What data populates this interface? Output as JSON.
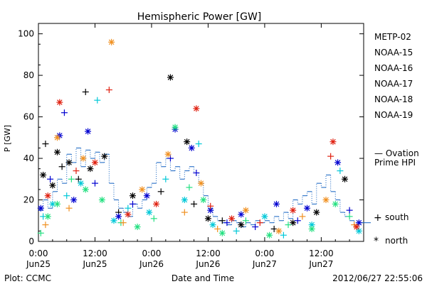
{
  "chart_data": {
    "type": "scatter",
    "title": "Hemispheric Power [GW]",
    "ylabel": "P [GW]",
    "xlabel": "Date and Time",
    "ylim": [
      0,
      105
    ],
    "xlim": [
      "2012-06-25T00:00",
      "2012-06-27T21:00"
    ],
    "y_ticks": [
      0,
      20,
      40,
      60,
      80,
      100
    ],
    "x_ticks": [
      {
        "time": "2012-06-25T00:00",
        "line1": "0:00",
        "line2": "Jun25"
      },
      {
        "time": "2012-06-25T12:00",
        "line1": "12:00",
        "line2": "Jun25"
      },
      {
        "time": "2012-06-26T00:00",
        "line1": "0:00",
        "line2": "Jun26"
      },
      {
        "time": "2012-06-26T12:00",
        "line1": "12:00",
        "line2": "Jun26"
      },
      {
        "time": "2012-06-27T00:00",
        "line1": "0:00",
        "line2": "Jun27"
      },
      {
        "time": "2012-06-27T12:00",
        "line1": "12:00",
        "line2": "Jun27"
      }
    ],
    "legend_position": "right",
    "marker_legend": {
      "south": "south",
      "north": "north",
      "south_symbol": "+",
      "north_symbol": "*"
    },
    "series": [
      {
        "name": "METP-02",
        "color": "#000000",
        "points": [
          {
            "t": "2012-06-25T01:00",
            "v": 32,
            "h": "north"
          },
          {
            "t": "2012-06-25T01:30",
            "v": 47,
            "h": "south"
          },
          {
            "t": "2012-06-25T03:00",
            "v": 27,
            "h": "north"
          },
          {
            "t": "2012-06-25T04:00",
            "v": 43,
            "h": "north"
          },
          {
            "t": "2012-06-25T05:00",
            "v": 36,
            "h": "south"
          },
          {
            "t": "2012-06-25T06:30",
            "v": 38,
            "h": "north"
          },
          {
            "t": "2012-06-25T08:30",
            "v": 30,
            "h": "south"
          },
          {
            "t": "2012-06-25T10:00",
            "v": 72,
            "h": "south"
          },
          {
            "t": "2012-06-25T11:00",
            "v": 35,
            "h": "north"
          },
          {
            "t": "2012-06-25T14:00",
            "v": 41,
            "h": "north"
          },
          {
            "t": "2012-06-25T17:00",
            "v": 14,
            "h": "south"
          },
          {
            "t": "2012-06-25T20:00",
            "v": 22,
            "h": "north"
          },
          {
            "t": "2012-06-26T02:00",
            "v": 24,
            "h": "south"
          },
          {
            "t": "2012-06-26T04:00",
            "v": 79,
            "h": "north"
          },
          {
            "t": "2012-06-26T07:30",
            "v": 48,
            "h": "north"
          },
          {
            "t": "2012-06-26T09:00",
            "v": 18,
            "h": "south"
          },
          {
            "t": "2012-06-26T12:00",
            "v": 11,
            "h": "north"
          },
          {
            "t": "2012-06-26T15:00",
            "v": 10,
            "h": "south"
          },
          {
            "t": "2012-06-26T19:00",
            "v": 8,
            "h": "north"
          },
          {
            "t": "2012-06-27T02:00",
            "v": 6,
            "h": "south"
          },
          {
            "t": "2012-06-27T06:00",
            "v": 9,
            "h": "north"
          },
          {
            "t": "2012-06-27T11:00",
            "v": 14,
            "h": "north"
          },
          {
            "t": "2012-06-27T17:00",
            "v": 30,
            "h": "north"
          }
        ]
      },
      {
        "name": "NOAA-15",
        "color": "#0000d0",
        "points": [
          {
            "t": "2012-06-25T00:30",
            "v": 16,
            "h": "north"
          },
          {
            "t": "2012-06-25T02:30",
            "v": 30,
            "h": "south"
          },
          {
            "t": "2012-06-25T04:30",
            "v": 51,
            "h": "north"
          },
          {
            "t": "2012-06-25T05:30",
            "v": 62,
            "h": "south"
          },
          {
            "t": "2012-06-25T07:30",
            "v": 20,
            "h": "north"
          },
          {
            "t": "2012-06-25T10:30",
            "v": 53,
            "h": "north"
          },
          {
            "t": "2012-06-25T12:00",
            "v": 28,
            "h": "south"
          },
          {
            "t": "2012-06-25T17:00",
            "v": 12,
            "h": "north"
          },
          {
            "t": "2012-06-25T20:00",
            "v": 18,
            "h": "south"
          },
          {
            "t": "2012-06-25T23:00",
            "v": 22,
            "h": "north"
          },
          {
            "t": "2012-06-26T04:00",
            "v": 40,
            "h": "south"
          },
          {
            "t": "2012-06-26T05:00",
            "v": 54,
            "h": "north"
          },
          {
            "t": "2012-06-26T08:30",
            "v": 45,
            "h": "north"
          },
          {
            "t": "2012-06-26T09:30",
            "v": 33,
            "h": "south"
          },
          {
            "t": "2012-06-26T12:30",
            "v": 15,
            "h": "north"
          },
          {
            "t": "2012-06-26T16:00",
            "v": 9,
            "h": "south"
          },
          {
            "t": "2012-06-26T19:00",
            "v": 13,
            "h": "north"
          },
          {
            "t": "2012-06-26T22:00",
            "v": 7,
            "h": "south"
          },
          {
            "t": "2012-06-27T02:30",
            "v": 18,
            "h": "north"
          },
          {
            "t": "2012-06-27T07:00",
            "v": 10,
            "h": "south"
          },
          {
            "t": "2012-06-27T09:00",
            "v": 16,
            "h": "north"
          },
          {
            "t": "2012-06-27T15:30",
            "v": 38,
            "h": "north"
          },
          {
            "t": "2012-06-27T18:00",
            "v": 15,
            "h": "south"
          },
          {
            "t": "2012-06-27T20:00",
            "v": 9,
            "h": "north"
          }
        ]
      },
      {
        "name": "NOAA-16",
        "color": "#00c8d8",
        "points": [
          {
            "t": "2012-06-25T01:00",
            "v": 12,
            "h": "south"
          },
          {
            "t": "2012-06-25T03:00",
            "v": 18,
            "h": "north"
          },
          {
            "t": "2012-06-25T06:00",
            "v": 22,
            "h": "south"
          },
          {
            "t": "2012-06-25T09:00",
            "v": 28,
            "h": "north"
          },
          {
            "t": "2012-06-25T12:30",
            "v": 68,
            "h": "south"
          },
          {
            "t": "2012-06-25T16:00",
            "v": 10,
            "h": "north"
          },
          {
            "t": "2012-06-25T19:00",
            "v": 16,
            "h": "south"
          },
          {
            "t": "2012-06-25T23:30",
            "v": 14,
            "h": "north"
          },
          {
            "t": "2012-06-26T03:00",
            "v": 30,
            "h": "south"
          },
          {
            "t": "2012-06-26T07:00",
            "v": 20,
            "h": "north"
          },
          {
            "t": "2012-06-26T10:00",
            "v": 47,
            "h": "south"
          },
          {
            "t": "2012-06-26T13:00",
            "v": 8,
            "h": "north"
          },
          {
            "t": "2012-06-26T18:00",
            "v": 5,
            "h": "south"
          },
          {
            "t": "2012-06-27T00:00",
            "v": 12,
            "h": "north"
          },
          {
            "t": "2012-06-27T04:00",
            "v": 3,
            "h": "south"
          },
          {
            "t": "2012-06-27T10:00",
            "v": 8,
            "h": "north"
          },
          {
            "t": "2012-06-27T16:00",
            "v": 34,
            "h": "south"
          },
          {
            "t": "2012-06-27T20:00",
            "v": 5,
            "h": "north"
          }
        ]
      },
      {
        "name": "NOAA-17",
        "color": "#22e080",
        "points": [
          {
            "t": "2012-06-25T00:30",
            "v": 4,
            "h": "south"
          },
          {
            "t": "2012-06-25T02:00",
            "v": 12,
            "h": "north"
          },
          {
            "t": "2012-06-25T04:00",
            "v": 18,
            "h": "north"
          },
          {
            "t": "2012-06-25T07:00",
            "v": 30,
            "h": "south"
          },
          {
            "t": "2012-06-25T10:00",
            "v": 25,
            "h": "north"
          },
          {
            "t": "2012-06-25T13:30",
            "v": 20,
            "h": "north"
          },
          {
            "t": "2012-06-25T17:30",
            "v": 9,
            "h": "south"
          },
          {
            "t": "2012-06-25T21:00",
            "v": 7,
            "h": "north"
          },
          {
            "t": "2012-06-26T00:30",
            "v": 11,
            "h": "south"
          },
          {
            "t": "2012-06-26T05:00",
            "v": 55,
            "h": "north"
          },
          {
            "t": "2012-06-26T08:00",
            "v": 26,
            "h": "south"
          },
          {
            "t": "2012-06-26T11:00",
            "v": 20,
            "h": "north"
          },
          {
            "t": "2012-06-26T15:00",
            "v": 4,
            "h": "north"
          },
          {
            "t": "2012-06-26T20:00",
            "v": 10,
            "h": "south"
          },
          {
            "t": "2012-06-27T01:00",
            "v": 3,
            "h": "north"
          },
          {
            "t": "2012-06-27T05:00",
            "v": 8,
            "h": "south"
          },
          {
            "t": "2012-06-27T10:00",
            "v": 6,
            "h": "north"
          },
          {
            "t": "2012-06-27T15:00",
            "v": 18,
            "h": "north"
          },
          {
            "t": "2012-06-27T18:00",
            "v": 12,
            "h": "south"
          }
        ]
      },
      {
        "name": "NOAA-18",
        "color": "#f09020",
        "points": [
          {
            "t": "2012-06-25T01:30",
            "v": 8,
            "h": "south"
          },
          {
            "t": "2012-06-25T04:00",
            "v": 50,
            "h": "north"
          },
          {
            "t": "2012-06-25T06:30",
            "v": 16,
            "h": "south"
          },
          {
            "t": "2012-06-25T09:30",
            "v": 40,
            "h": "north"
          },
          {
            "t": "2012-06-25T15:30",
            "v": 96,
            "h": "north"
          },
          {
            "t": "2012-06-25T18:00",
            "v": 9,
            "h": "south"
          },
          {
            "t": "2012-06-25T22:00",
            "v": 25,
            "h": "north"
          },
          {
            "t": "2012-06-26T03:30",
            "v": 42,
            "h": "north"
          },
          {
            "t": "2012-06-26T07:00",
            "v": 14,
            "h": "south"
          },
          {
            "t": "2012-06-26T10:30",
            "v": 28,
            "h": "north"
          },
          {
            "t": "2012-06-26T14:00",
            "v": 6,
            "h": "south"
          },
          {
            "t": "2012-06-26T20:00",
            "v": 15,
            "h": "north"
          },
          {
            "t": "2012-06-27T03:00",
            "v": 5,
            "h": "north"
          },
          {
            "t": "2012-06-27T08:00",
            "v": 12,
            "h": "south"
          },
          {
            "t": "2012-06-27T13:00",
            "v": 20,
            "h": "north"
          },
          {
            "t": "2012-06-27T19:00",
            "v": 8,
            "h": "south"
          }
        ]
      },
      {
        "name": "NOAA-19",
        "color": "#e02010",
        "points": [
          {
            "t": "2012-06-25T02:00",
            "v": 22,
            "h": "north"
          },
          {
            "t": "2012-06-25T04:30",
            "v": 67,
            "h": "north"
          },
          {
            "t": "2012-06-25T08:00",
            "v": 34,
            "h": "south"
          },
          {
            "t": "2012-06-25T12:00",
            "v": 38,
            "h": "north"
          },
          {
            "t": "2012-06-25T15:00",
            "v": 73,
            "h": "south"
          },
          {
            "t": "2012-06-25T19:00",
            "v": 13,
            "h": "north"
          },
          {
            "t": "2012-06-26T01:00",
            "v": 18,
            "h": "north"
          },
          {
            "t": "2012-06-26T09:30",
            "v": 64,
            "h": "north"
          },
          {
            "t": "2012-06-26T12:30",
            "v": 17,
            "h": "south"
          },
          {
            "t": "2012-06-26T17:00",
            "v": 11,
            "h": "north"
          },
          {
            "t": "2012-06-26T23:00",
            "v": 9,
            "h": "south"
          },
          {
            "t": "2012-06-27T06:00",
            "v": 15,
            "h": "north"
          },
          {
            "t": "2012-06-27T14:00",
            "v": 41,
            "h": "south"
          },
          {
            "t": "2012-06-27T14:30",
            "v": 48,
            "h": "north"
          },
          {
            "t": "2012-06-27T19:30",
            "v": 7,
            "h": "north"
          }
        ]
      }
    ],
    "ovation": {
      "name_line1": "— Ovation",
      "name_line2": "Prime HPI",
      "color": "#1060c0",
      "points": [
        {
          "t": "2012-06-25T00:00",
          "v": 15
        },
        {
          "t": "2012-06-25T01:00",
          "v": 20
        },
        {
          "t": "2012-06-25T02:00",
          "v": 16
        },
        {
          "t": "2012-06-25T03:00",
          "v": 24
        },
        {
          "t": "2012-06-25T04:00",
          "v": 30
        },
        {
          "t": "2012-06-25T05:00",
          "v": 28
        },
        {
          "t": "2012-06-25T06:00",
          "v": 42
        },
        {
          "t": "2012-06-25T07:00",
          "v": 38
        },
        {
          "t": "2012-06-25T08:00",
          "v": 45
        },
        {
          "t": "2012-06-25T09:00",
          "v": 36
        },
        {
          "t": "2012-06-25T10:00",
          "v": 44
        },
        {
          "t": "2012-06-25T11:00",
          "v": 40
        },
        {
          "t": "2012-06-25T12:00",
          "v": 43
        },
        {
          "t": "2012-06-25T13:00",
          "v": 38
        },
        {
          "t": "2012-06-25T14:00",
          "v": 42
        },
        {
          "t": "2012-06-25T15:00",
          "v": 28
        },
        {
          "t": "2012-06-25T16:00",
          "v": 20
        },
        {
          "t": "2012-06-25T17:00",
          "v": 16
        },
        {
          "t": "2012-06-25T18:00",
          "v": 14
        },
        {
          "t": "2012-06-25T19:00",
          "v": 12
        },
        {
          "t": "2012-06-25T20:00",
          "v": 18
        },
        {
          "t": "2012-06-25T21:00",
          "v": 16
        },
        {
          "t": "2012-06-25T22:00",
          "v": 20
        },
        {
          "t": "2012-06-25T23:00",
          "v": 26
        },
        {
          "t": "2012-06-26T00:00",
          "v": 28
        },
        {
          "t": "2012-06-26T01:00",
          "v": 38
        },
        {
          "t": "2012-06-26T02:00",
          "v": 36
        },
        {
          "t": "2012-06-26T03:00",
          "v": 40
        },
        {
          "t": "2012-06-26T04:00",
          "v": 34
        },
        {
          "t": "2012-06-26T05:00",
          "v": 36
        },
        {
          "t": "2012-06-26T06:00",
          "v": 30
        },
        {
          "t": "2012-06-26T07:00",
          "v": 34
        },
        {
          "t": "2012-06-26T08:00",
          "v": 36
        },
        {
          "t": "2012-06-26T09:00",
          "v": 33
        },
        {
          "t": "2012-06-26T10:00",
          "v": 28
        },
        {
          "t": "2012-06-26T11:00",
          "v": 22
        },
        {
          "t": "2012-06-26T12:00",
          "v": 16
        },
        {
          "t": "2012-06-26T13:00",
          "v": 12
        },
        {
          "t": "2012-06-26T14:00",
          "v": 10
        },
        {
          "t": "2012-06-26T15:00",
          "v": 9
        },
        {
          "t": "2012-06-26T16:00",
          "v": 8
        },
        {
          "t": "2012-06-26T17:00",
          "v": 10
        },
        {
          "t": "2012-06-26T18:00",
          "v": 9
        },
        {
          "t": "2012-06-26T19:00",
          "v": 7
        },
        {
          "t": "2012-06-26T20:00",
          "v": 9
        },
        {
          "t": "2012-06-26T21:00",
          "v": 8
        },
        {
          "t": "2012-06-26T22:00",
          "v": 10
        },
        {
          "t": "2012-06-26T23:00",
          "v": 9
        },
        {
          "t": "2012-06-27T00:00",
          "v": 10
        },
        {
          "t": "2012-06-27T01:00",
          "v": 9
        },
        {
          "t": "2012-06-27T02:00",
          "v": 12
        },
        {
          "t": "2012-06-27T03:00",
          "v": 10
        },
        {
          "t": "2012-06-27T04:00",
          "v": 14
        },
        {
          "t": "2012-06-27T05:00",
          "v": 11
        },
        {
          "t": "2012-06-27T06:00",
          "v": 20
        },
        {
          "t": "2012-06-27T07:00",
          "v": 18
        },
        {
          "t": "2012-06-27T08:00",
          "v": 22
        },
        {
          "t": "2012-06-27T09:00",
          "v": 24
        },
        {
          "t": "2012-06-27T10:00",
          "v": 18
        },
        {
          "t": "2012-06-27T11:00",
          "v": 28
        },
        {
          "t": "2012-06-27T12:00",
          "v": 26
        },
        {
          "t": "2012-06-27T13:00",
          "v": 32
        },
        {
          "t": "2012-06-27T14:00",
          "v": 24
        },
        {
          "t": "2012-06-27T15:00",
          "v": 20
        },
        {
          "t": "2012-06-27T16:00",
          "v": 14
        },
        {
          "t": "2012-06-27T17:00",
          "v": 12
        },
        {
          "t": "2012-06-27T18:00",
          "v": 10
        },
        {
          "t": "2012-06-27T19:00",
          "v": 8
        },
        {
          "t": "2012-06-27T20:00",
          "v": 9
        }
      ]
    }
  },
  "footer": {
    "left": "Plot: CCMC",
    "center": "Date and Time",
    "right": "2012/06/27 22:55:06"
  }
}
